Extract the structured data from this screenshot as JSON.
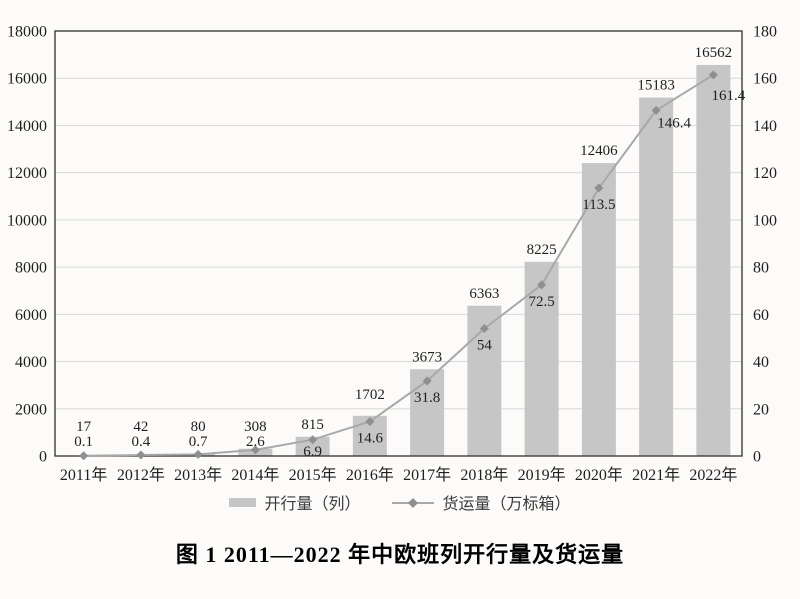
{
  "figure": {
    "caption": "图 1  2011—2022 年中欧班列开行量及货运量"
  },
  "legend": {
    "items": [
      {
        "label": "开行量（列）",
        "swatch": "bar"
      },
      {
        "label": "货运量（万标箱）",
        "swatch": "line-diamond"
      }
    ]
  },
  "chart_data": {
    "type": "bar+line combo",
    "categories": [
      "2011年",
      "2012年",
      "2013年",
      "2014年",
      "2015年",
      "2016年",
      "2017年",
      "2018年",
      "2019年",
      "2020年",
      "2021年",
      "2022年"
    ],
    "series": [
      {
        "name": "开行量（列）",
        "type": "bar",
        "axis": "left",
        "values": [
          17,
          42,
          80,
          308,
          815,
          1702,
          3673,
          6363,
          8225,
          12406,
          15183,
          16562
        ]
      },
      {
        "name": "货运量（万标箱）",
        "type": "line",
        "axis": "right",
        "values": [
          0.1,
          0.4,
          0.7,
          2.6,
          6.9,
          14.6,
          31.8,
          54,
          72.5,
          113.5,
          146.4,
          161.4
        ]
      }
    ],
    "left_axis": {
      "min": 0,
      "max": 18000,
      "step": 2000
    },
    "right_axis": {
      "min": 0,
      "max": 180,
      "step": 20
    },
    "grid": true,
    "legend_position": "bottom",
    "data_labels": true,
    "colors": {
      "bar": "#c6c6c6",
      "line": "#a8a8a8",
      "marker": "#8f8f8f",
      "grid": "#d9d9d9",
      "frame": "#3d3d3d",
      "text": "#1f1f1f",
      "background": "#fcfbf9"
    }
  }
}
